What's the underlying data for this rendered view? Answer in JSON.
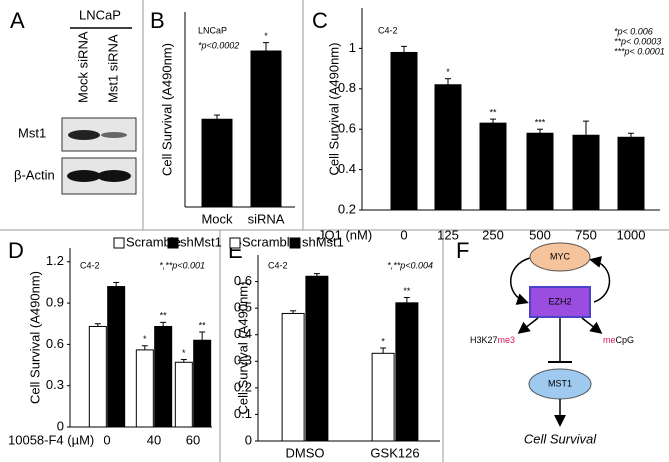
{
  "blot": {
    "label": "A",
    "cell_line": "LNCaP",
    "lanes": [
      "Mock siRNA",
      "Mst1 siRNA"
    ],
    "rows": [
      "Mst1",
      "β-Actin"
    ]
  },
  "chart_data": [
    {
      "type": "bar",
      "panel": "B",
      "ylabel": "Cell Survival (A490nm)",
      "cell_line": "LNCaP",
      "notes": [
        "*p<0.0002"
      ],
      "categories": [
        "Mock",
        "siRNA"
      ],
      "ylim": [
        0,
        1.4
      ],
      "series": [
        {
          "color": "#000000",
          "values": [
            0.63,
            1.12
          ],
          "errors": [
            0.03,
            0.06
          ],
          "markers": [
            null,
            "*"
          ]
        }
      ]
    },
    {
      "type": "bar",
      "panel": "C",
      "ylabel": "Cell Survival (A490nm)",
      "cell_line": "C4-2",
      "xlabel": "JQ1 (nM)",
      "notes": [
        "*p< 0.006",
        "**p< 0.0003",
        "***p< 0.0001"
      ],
      "categories": [
        "0",
        "125",
        "250",
        "500",
        "750",
        "1000"
      ],
      "ylim": [
        0.2,
        1.2
      ],
      "yticks": [
        0.2,
        0.4,
        0.6,
        0.8,
        1
      ],
      "series": [
        {
          "color": "#000000",
          "values": [
            0.98,
            0.82,
            0.63,
            0.58,
            0.57,
            0.56
          ],
          "errors": [
            0.03,
            0.03,
            0.02,
            0.02,
            0.07,
            0.02
          ],
          "markers": [
            null,
            "*",
            "**",
            "***",
            null,
            null
          ]
        }
      ]
    },
    {
      "type": "bar",
      "panel": "D",
      "ylabel": "Cell Survival (A490nm)",
      "cell_line": "C4-2",
      "xlabel": "10058-F4 (µM)",
      "notes": [
        "*,**p<0.001"
      ],
      "categories": [
        "0",
        "40",
        "60"
      ],
      "ylim": [
        0,
        1.3
      ],
      "yticks": [
        0,
        0.3,
        0.6,
        0.9,
        1.2
      ],
      "series": [
        {
          "name": "Scramble",
          "color": "#ffffff",
          "values": [
            0.73,
            0.56,
            0.47
          ],
          "errors": [
            0.02,
            0.03,
            0.02
          ],
          "markers": [
            null,
            "*",
            "*"
          ]
        },
        {
          "name": "shMst1",
          "color": "#000000",
          "values": [
            1.02,
            0.73,
            0.63
          ],
          "errors": [
            0.03,
            0.03,
            0.06
          ],
          "markers": [
            null,
            "**",
            "**"
          ]
        }
      ]
    },
    {
      "type": "bar",
      "panel": "E",
      "ylabel": "Cell Survival (A490nm)",
      "cell_line": "C4-2",
      "notes": [
        "*,**p<0.004"
      ],
      "categories": [
        "DMSO",
        "GSK126"
      ],
      "ylim": [
        0,
        0.7
      ],
      "yticks": [
        0,
        0.1,
        0.2,
        0.3,
        0.4,
        0.5,
        0.6
      ],
      "series": [
        {
          "name": "Scramble",
          "color": "#ffffff",
          "values": [
            0.48,
            0.33
          ],
          "errors": [
            0.01,
            0.02
          ],
          "markers": [
            null,
            "*"
          ]
        },
        {
          "name": "shMst1",
          "color": "#000000",
          "values": [
            0.62,
            0.52
          ],
          "errors": [
            0.01,
            0.02
          ],
          "markers": [
            null,
            "**"
          ]
        }
      ]
    }
  ],
  "diagram": {
    "label": "F",
    "myc": "MYC",
    "ezh2": "EZH2",
    "mst1": "MST1",
    "mark_left": [
      "H3K27",
      "me3"
    ],
    "mark_right": [
      "me",
      "CpG"
    ],
    "outcome": "Cell Survival"
  }
}
